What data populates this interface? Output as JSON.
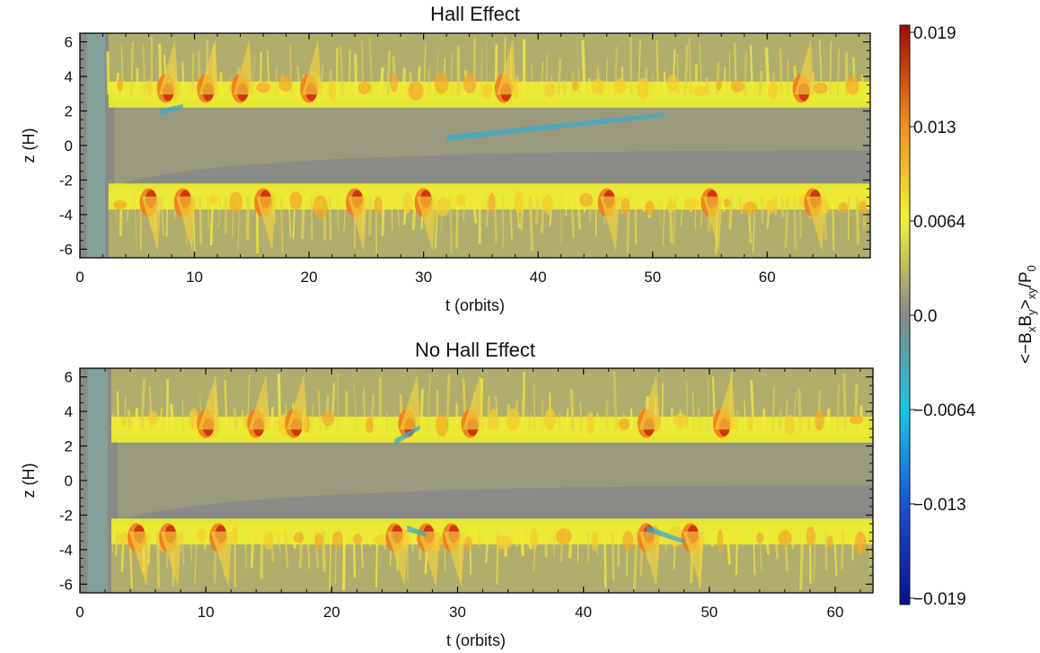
{
  "chart_data": [
    {
      "type": "heatmap",
      "title": "Hall Effect",
      "xlabel": "t (orbits)",
      "ylabel": "z (H)",
      "xlim": [
        0,
        69
      ],
      "ylim": [
        -6.5,
        6.5
      ],
      "xticks": [
        "0",
        "10",
        "20",
        "30",
        "40",
        "50",
        "60"
      ],
      "yticks": [
        "6",
        "4",
        "2",
        "0",
        "-2",
        "-4",
        "-6"
      ],
      "features": {
        "layer_z": [
          2.95,
          -2.95
        ],
        "active_start": 2.5,
        "red_bursts_upper": [
          7.5,
          11,
          14,
          20,
          37,
          63
        ],
        "red_bursts_lower": [
          6,
          9,
          16,
          24,
          30,
          46,
          55,
          64
        ],
        "negative_streaks": [
          {
            "t": [
              32,
              51
            ],
            "z": [
              0.6,
              1.9
            ]
          },
          {
            "t": [
              7,
              9
            ],
            "z": [
              2.1,
              2.4
            ]
          }
        ]
      }
    },
    {
      "type": "heatmap",
      "title": "No Hall Effect",
      "xlabel": "t (orbits)",
      "ylabel": "z (H)",
      "xlim": [
        0,
        63
      ],
      "ylim": [
        -6.5,
        6.5
      ],
      "xticks": [
        "0",
        "10",
        "20",
        "30",
        "40",
        "50",
        "60"
      ],
      "yticks": [
        "6",
        "4",
        "2",
        "0",
        "-2",
        "-4",
        "-6"
      ],
      "features": {
        "layer_z": [
          2.95,
          -2.95
        ],
        "active_start": 2.5,
        "red_bursts_upper": [
          10,
          14,
          17,
          26,
          31,
          45,
          51
        ],
        "red_bursts_lower": [
          4.5,
          7,
          11,
          25,
          27.5,
          29.5,
          45,
          48.5
        ],
        "negative_streaks": [
          {
            "t": [
              25,
              27
            ],
            "z": [
              2.4,
              3.2
            ]
          },
          {
            "t": [
              45,
              48
            ],
            "z": [
              -2.6,
              -3.4
            ]
          },
          {
            "t": [
              26,
              27.5
            ],
            "z": [
              -2.6,
              -3.0
            ]
          }
        ]
      }
    }
  ],
  "colorbar": {
    "label_main": "<−B",
    "label_sub1": "x",
    "label_mid": "B",
    "label_sub2": "y",
    "label_close": ">",
    "label_sub3": "xy",
    "label_slash": "/P",
    "label_sub4": "0",
    "range": [
      -0.019,
      0.019
    ],
    "ticks": [
      "0.019",
      "0.013",
      "0.0064",
      "0.0",
      "−0.0064",
      "−0.013",
      "−0.019"
    ],
    "colors": [
      "#05128a",
      "#1b4fd6",
      "#19c6e6",
      "#888888",
      "#f2f23a",
      "#f08a1e",
      "#a00a06"
    ]
  }
}
